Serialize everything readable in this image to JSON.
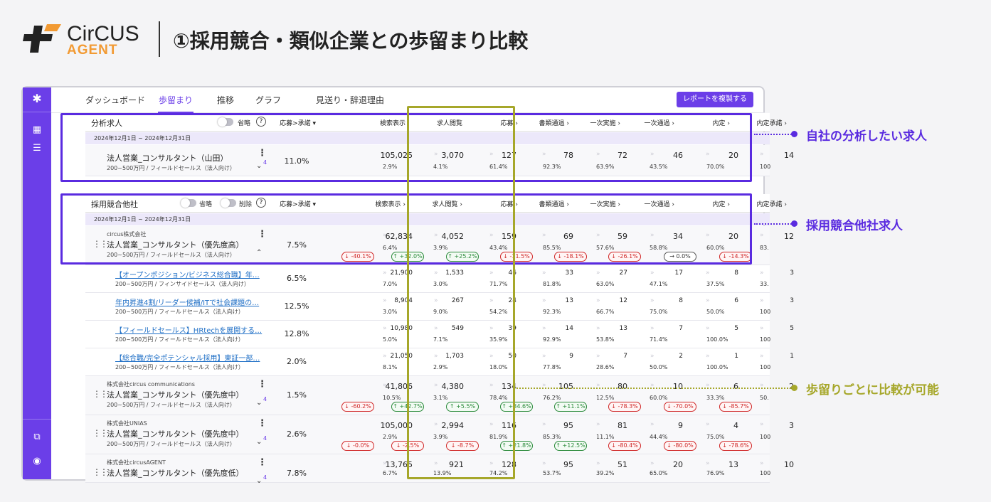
{
  "brand": {
    "word": "CirCUS",
    "sub": "AGENT",
    "mark": "circus-logo-mark"
  },
  "page_title": "①採用競合・類似企業との歩留まり比較",
  "colors": {
    "accent": "#6b3ee8",
    "olive": "#a6a72a",
    "callout_purple": "#5a2be0",
    "down": "#d02828",
    "up": "#2a8a3a"
  },
  "tabs": [
    "ダッシュボード",
    "歩留まり",
    "推移",
    "グラフ",
    "見送り・辞退理由"
  ],
  "active_tab": "歩留まり",
  "copy_report": "レポートを複製する",
  "sidebar_icons": [
    "logo-icon",
    "dashboard-icon",
    "list-icon",
    "external-link-icon",
    "account-icon"
  ],
  "sec1": {
    "title": "分析求人",
    "toggle_label": "省略",
    "help": "?",
    "date": "2024年12月1日 ~ 2024年12月31日"
  },
  "sec2": {
    "title": "採用競合他社",
    "toggle1": "省略",
    "toggle2": "削除",
    "help": "?",
    "date": "2024年12月1日 ~ 2024年12月31日"
  },
  "columns": [
    "応募>承諾",
    "検索表示",
    "求人閲覧",
    "応募",
    "書類通過",
    "一次実施",
    "一次通過",
    "内定",
    "内定承諾"
  ],
  "own_job": {
    "title": "法人営業_コンサルタント（山田）",
    "sub": "200~500万円 / フィールドセールス（法人向け）",
    "count": "4",
    "rate": "11.0%",
    "nums": [
      "105,025",
      "3,070",
      "127",
      "78",
      "72",
      "46",
      "20",
      "14"
    ],
    "pcts": [
      "2.9%",
      "4.1%",
      "61.4%",
      "92.3%",
      "63.9%",
      "43.5%",
      "70.0%",
      "100"
    ]
  },
  "competitors": [
    {
      "company": "circus株式会社",
      "title": "法人営業_コンサルタント（優先度高）",
      "sub": "200~500万円 / フィールドセールス（法人向け）",
      "rate": "7.5%",
      "nums": [
        "62,834",
        "4,052",
        "159",
        "69",
        "59",
        "34",
        "20",
        "12"
      ],
      "pcts": [
        "6.4%",
        "3.9%",
        "43.4%",
        "85.5%",
        "57.6%",
        "58.8%",
        "60.0%",
        "83."
      ],
      "badges": [
        "↓ -40.1%",
        "↑ +32.0%",
        "↑ +25.2%",
        "↓ -11.5%",
        "↓ -18.1%",
        "↓ -26.1%",
        "→ 0.0%",
        "↓ -14.3%"
      ],
      "badge_dirs": [
        "dn",
        "up",
        "up",
        "dn",
        "dn",
        "dn",
        "fl",
        "dn"
      ],
      "expanded": true
    },
    {
      "company": "株式会社circus communications",
      "title": "法人営業_コンサルタント（優先度中）",
      "sub": "200~500万円 / フィールドセールス（法人向け）",
      "rate": "1.5%",
      "count": "4",
      "nums": [
        "41,806",
        "4,380",
        "134",
        "105",
        "80",
        "10",
        "6",
        "2"
      ],
      "pcts": [
        "10.5%",
        "3.1%",
        "78.4%",
        "76.2%",
        "12.5%",
        "60.0%",
        "33.3%",
        "50."
      ],
      "badges": [
        "↓ -60.2%",
        "↑ +42.7%",
        "↑ +5.5%",
        "↑ +34.6%",
        "↑ +11.1%",
        "↓ -78.3%",
        "↓ -70.0%",
        "↓ -85.7%"
      ],
      "badge_dirs": [
        "dn",
        "up",
        "up",
        "up",
        "up",
        "dn",
        "dn",
        "dn"
      ]
    },
    {
      "company": "株式会社UNIAS",
      "title": "法人営業_コンサルタント（優先度中）",
      "sub": "200~500万円 / フィールドセールス（法人向け）",
      "rate": "2.6%",
      "count": "4",
      "nums": [
        "105,000",
        "2,994",
        "116",
        "95",
        "81",
        "9",
        "4",
        "3"
      ],
      "pcts": [
        "2.9%",
        "3.9%",
        "81.9%",
        "85.3%",
        "11.1%",
        "44.4%",
        "75.0%",
        "100"
      ],
      "badges": [
        "↓ -0.0%",
        "↓ -2.5%",
        "↓ -8.7%",
        "↑ +21.8%",
        "↑ +12.5%",
        "↓ -80.4%",
        "↓ -80.0%",
        "↓ -78.6%"
      ],
      "badge_dirs": [
        "dn",
        "dn",
        "dn",
        "up",
        "up",
        "dn",
        "dn",
        "dn"
      ]
    },
    {
      "company": "株式会社circusAGENT",
      "title": "法人営業_コンサルタント（優先度低）",
      "sub": "",
      "rate": "7.8%",
      "count": "4",
      "nums": [
        "13,765",
        "921",
        "128",
        "95",
        "51",
        "20",
        "13",
        "10"
      ],
      "pcts": [
        "6.7%",
        "13.9%",
        "74.2%",
        "53.7%",
        "39.2%",
        "65.0%",
        "76.9%",
        "100"
      ]
    }
  ],
  "children": [
    {
      "title": "【オープンポジション/ビジネス総合職】年…",
      "sub": "200~500万円 / フィンサイドセールス（法人向け）",
      "rate": "6.5%",
      "nums": [
        "21,900",
        "1,533",
        "46",
        "33",
        "27",
        "17",
        "8",
        "3"
      ],
      "pcts": [
        "7.0%",
        "3.0%",
        "71.7%",
        "81.8%",
        "63.0%",
        "47.1%",
        "37.5%",
        "33."
      ]
    },
    {
      "title": "年内昇進4割/リーダー候補/ITで社会課題の…",
      "sub": "200~500万円 / フィールドセールス（法人向け）",
      "rate": "12.5%",
      "nums": [
        "8,904",
        "267",
        "24",
        "13",
        "12",
        "8",
        "6",
        "3"
      ],
      "pcts": [
        "3.0%",
        "9.0%",
        "54.2%",
        "92.3%",
        "66.7%",
        "75.0%",
        "50.0%",
        "100"
      ]
    },
    {
      "title": "【フィールドセールス】HRtechを展開する…",
      "sub": "200~500万円 / フィールドセールス（法人向け）",
      "rate": "12.8%",
      "nums": [
        "10,980",
        "549",
        "39",
        "14",
        "13",
        "7",
        "5",
        "5"
      ],
      "pcts": [
        "5.0%",
        "7.1%",
        "35.9%",
        "92.9%",
        "53.8%",
        "71.4%",
        "100.0%",
        "100"
      ]
    },
    {
      "title": "【総合職/完全ポテンシャル採用】東証一部…",
      "sub": "200~500万円 / フィールドセールス（法人向け）",
      "rate": "2.0%",
      "nums": [
        "21,050",
        "1,703",
        "50",
        "9",
        "7",
        "2",
        "1",
        "1"
      ],
      "pcts": [
        "8.1%",
        "2.9%",
        "18.0%",
        "77.8%",
        "28.6%",
        "50.0%",
        "100.0%",
        "100"
      ]
    }
  ],
  "callouts": [
    "自社の分析したい求人",
    "採用競合他社求人",
    "歩留りごとに比較が可能"
  ]
}
